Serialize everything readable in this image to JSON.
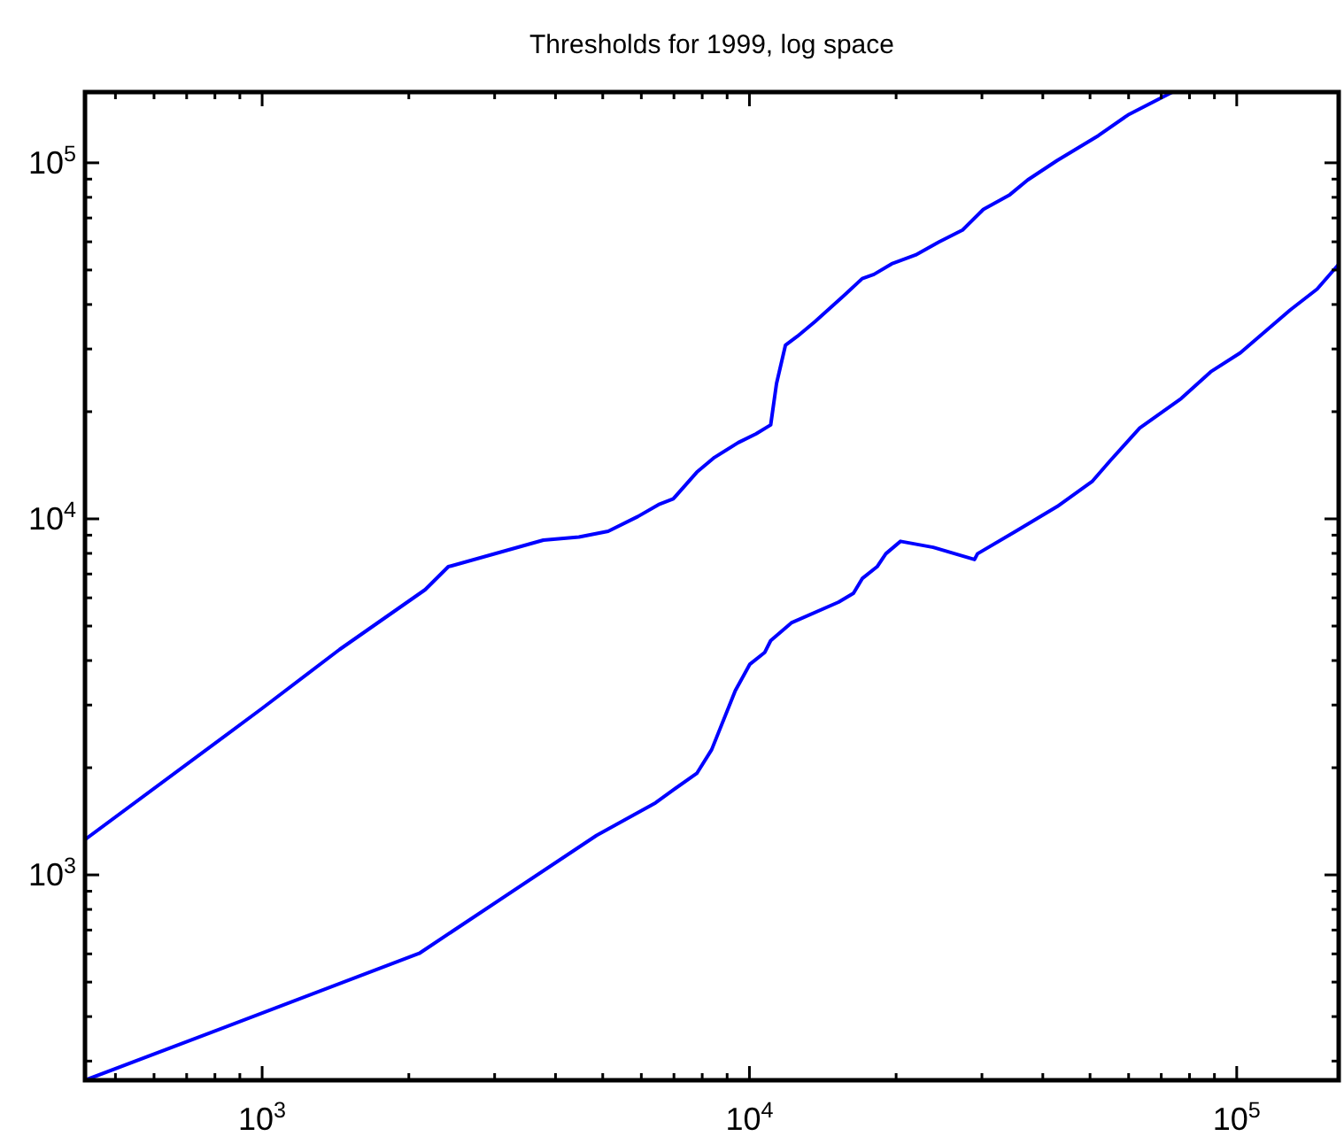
{
  "chart_data": {
    "type": "line",
    "title": "Thresholds for 1999, log space",
    "log": "xy",
    "grid": false,
    "marker": "none",
    "line_style": "solid",
    "xlim": [
      433,
      161900
    ],
    "ylim": [
      265,
      158000
    ],
    "xticks": [
      {
        "value": 500,
        "label": null
      },
      {
        "value": 600,
        "label": null
      },
      {
        "value": 700,
        "label": null
      },
      {
        "value": 800,
        "label": null
      },
      {
        "value": 900,
        "label": null
      },
      {
        "value": 1000,
        "label": "10$^{3}$"
      },
      {
        "value": 2000,
        "label": null
      },
      {
        "value": 3000,
        "label": null
      },
      {
        "value": 4000,
        "label": null
      },
      {
        "value": 5000,
        "label": null
      },
      {
        "value": 6000,
        "label": null
      },
      {
        "value": 7000,
        "label": null
      },
      {
        "value": 8000,
        "label": null
      },
      {
        "value": 9000,
        "label": null
      },
      {
        "value": 10000,
        "label": "10$^{4}$"
      },
      {
        "value": 20000,
        "label": null
      },
      {
        "value": 30000,
        "label": null
      },
      {
        "value": 40000,
        "label": null
      },
      {
        "value": 50000,
        "label": null
      },
      {
        "value": 60000,
        "label": null
      },
      {
        "value": 70000,
        "label": null
      },
      {
        "value": 80000,
        "label": null
      },
      {
        "value": 90000,
        "label": null
      },
      {
        "value": 100000,
        "label": "10$^{5}$"
      }
    ],
    "yticks": [
      {
        "value": 300,
        "label": null
      },
      {
        "value": 400,
        "label": null
      },
      {
        "value": 500,
        "label": null
      },
      {
        "value": 600,
        "label": null
      },
      {
        "value": 700,
        "label": null
      },
      {
        "value": 800,
        "label": null
      },
      {
        "value": 900,
        "label": null
      },
      {
        "value": 1000,
        "label": "10$^{3}$"
      },
      {
        "value": 2000,
        "label": null
      },
      {
        "value": 3000,
        "label": null
      },
      {
        "value": 4000,
        "label": null
      },
      {
        "value": 5000,
        "label": null
      },
      {
        "value": 6000,
        "label": null
      },
      {
        "value": 7000,
        "label": null
      },
      {
        "value": 8000,
        "label": null
      },
      {
        "value": 9000,
        "label": null
      },
      {
        "value": 10000,
        "label": "10$^{4}$"
      },
      {
        "value": 20000,
        "label": null
      },
      {
        "value": 30000,
        "label": null
      },
      {
        "value": 40000,
        "label": null
      },
      {
        "value": 50000,
        "label": null
      },
      {
        "value": 60000,
        "label": null
      },
      {
        "value": 70000,
        "label": null
      },
      {
        "value": 80000,
        "label": null
      },
      {
        "value": 90000,
        "label": null
      },
      {
        "value": 100000,
        "label": "10$^{5}$"
      }
    ],
    "series": [
      {
        "color": "#0000ff",
        "x": [
          433,
          1000,
          1442,
          2160,
          2410,
          3776,
          4467,
          5130,
          5902,
          6506,
          6977,
          7798,
          8478,
          9484,
          10315,
          11057,
          11365,
          11854,
          12534,
          13630,
          15670,
          17040,
          18010,
          19590,
          21930,
          24490,
          27380,
          30200,
          34230,
          37240,
          42810,
          52000,
          59840,
          73800
        ],
        "values": [
          1257,
          2936,
          4297,
          6324,
          7338,
          8714,
          8892,
          9232,
          10150,
          10960,
          11380,
          13520,
          14880,
          16370,
          17330,
          18360,
          23990,
          30730,
          32540,
          35810,
          42500,
          47300,
          48600,
          52050,
          55110,
          59950,
          64770,
          73990,
          81360,
          89500,
          101500,
          119200,
          136300,
          158000
        ]
      },
      {
        "color": "#0000ff",
        "x": [
          433,
          2101,
          4856,
          6417,
          6977,
          7798,
          8366,
          9354,
          10023,
          10755,
          11057,
          12190,
          15240,
          16350,
          17040,
          18280,
          19050,
          20420,
          23830,
          28970,
          29380,
          35200,
          42810,
          50600,
          55060,
          63240,
          76920,
          88420,
          101700,
          128800,
          146200,
          161900
        ],
        "values": [
          265,
          602,
          1291,
          1594,
          1733,
          1928,
          2248,
          3292,
          3908,
          4218,
          4550,
          5105,
          5837,
          6182,
          6797,
          7338,
          7980,
          8648,
          8318,
          7686,
          7980,
          9232,
          10830,
          12770,
          14590,
          17990,
          21780,
          25880,
          29250,
          38630,
          44190,
          51870
        ]
      }
    ]
  }
}
